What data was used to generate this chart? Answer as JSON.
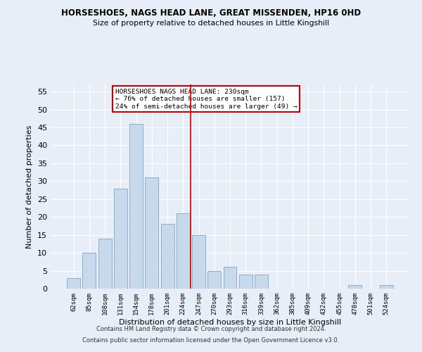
{
  "title1": "HORSESHOES, NAGS HEAD LANE, GREAT MISSENDEN, HP16 0HD",
  "title2": "Size of property relative to detached houses in Little Kingshill",
  "xlabel": "Distribution of detached houses by size in Little Kingshill",
  "ylabel": "Number of detached properties",
  "bar_color": "#c9d9ec",
  "bar_edge_color": "#7aa6cc",
  "categories": [
    "62sqm",
    "85sqm",
    "108sqm",
    "131sqm",
    "154sqm",
    "178sqm",
    "201sqm",
    "224sqm",
    "247sqm",
    "270sqm",
    "293sqm",
    "316sqm",
    "339sqm",
    "362sqm",
    "385sqm",
    "409sqm",
    "432sqm",
    "455sqm",
    "478sqm",
    "501sqm",
    "524sqm"
  ],
  "values": [
    3,
    10,
    14,
    28,
    46,
    31,
    18,
    21,
    15,
    5,
    6,
    4,
    4,
    0,
    0,
    0,
    0,
    0,
    1,
    0,
    1
  ],
  "vline_color": "#cc0000",
  "annotation_title": "HORSESHOES NAGS HEAD LANE: 230sqm",
  "annotation_line1": "← 76% of detached houses are smaller (157)",
  "annotation_line2": "24% of semi-detached houses are larger (49) →",
  "annotation_box_color": "#ffffff",
  "annotation_box_edge": "#cc0000",
  "ylim": [
    0,
    57
  ],
  "yticks": [
    0,
    5,
    10,
    15,
    20,
    25,
    30,
    35,
    40,
    45,
    50,
    55
  ],
  "footer1": "Contains HM Land Registry data © Crown copyright and database right 2024.",
  "footer2": "Contains public sector information licensed under the Open Government Licence v3.0.",
  "background_color": "#e8eef7",
  "grid_color": "#ffffff"
}
